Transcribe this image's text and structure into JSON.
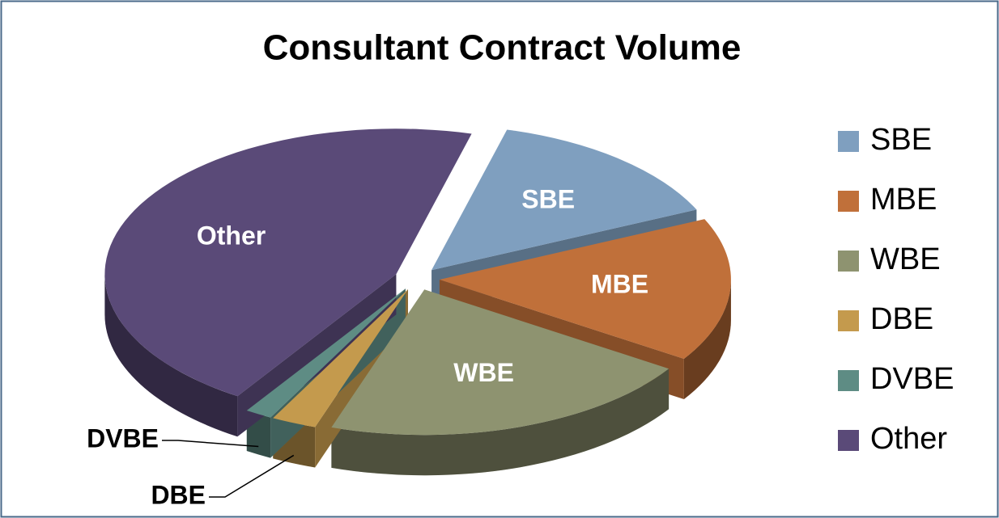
{
  "chart_data": {
    "type": "pie3d",
    "title": "Consultant Contract Volume",
    "categories": [
      "SBE",
      "MBE",
      "WBE",
      "DBE",
      "DVBE",
      "Other"
    ],
    "values": [
      14,
      16,
      21,
      2.5,
      1.5,
      45
    ],
    "colors": [
      "#7f9fbf",
      "#c0703a",
      "#8e9370",
      "#c49a4d",
      "#5e8c84",
      "#5a4a78"
    ],
    "legend": "right"
  }
}
